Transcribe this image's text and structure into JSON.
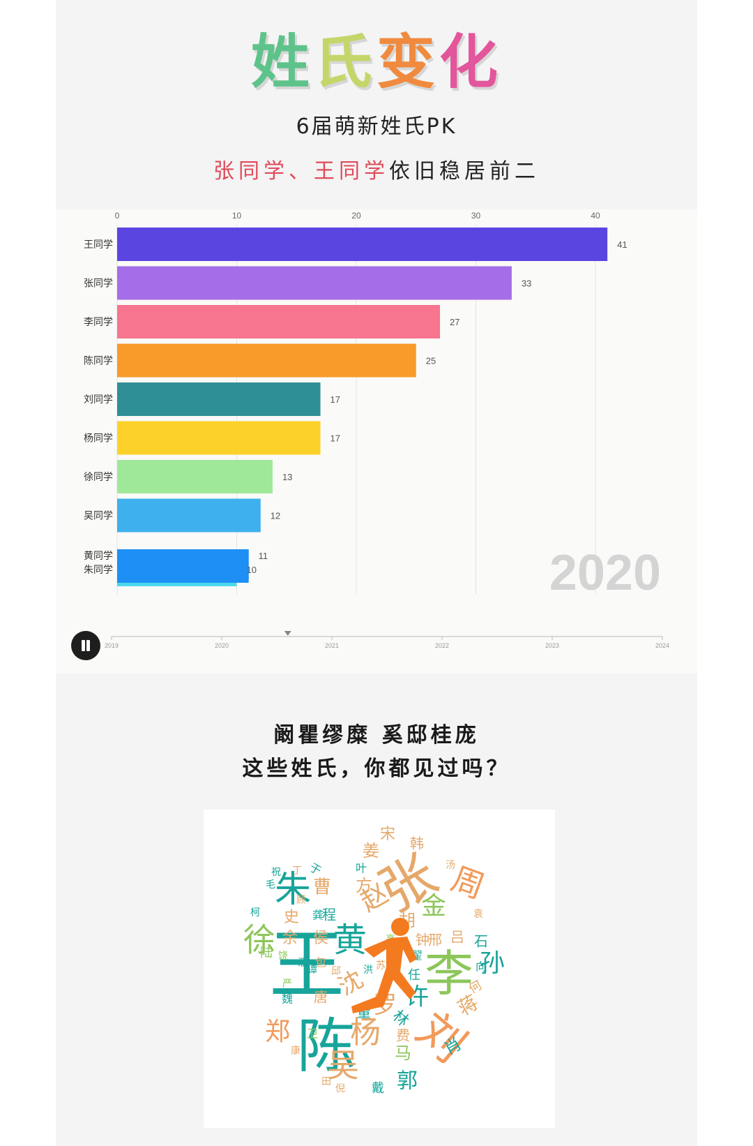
{
  "header": {
    "title_chars": [
      {
        "char": "姓",
        "color": "#5ec38a"
      },
      {
        "char": "氏",
        "color": "#c4d66a"
      },
      {
        "char": "变",
        "color": "#f08a3e"
      },
      {
        "char": "化",
        "color": "#e3569b"
      }
    ],
    "subtitle": "6届萌新姓氏PK",
    "headline_highlight": "张同学、王同学",
    "headline_rest": "依旧稳居前二"
  },
  "chart_data": {
    "type": "bar",
    "orientation": "horizontal",
    "year_label": "2020",
    "xlim": [
      0,
      40
    ],
    "x_ticks": [
      "0",
      "10",
      "20",
      "30",
      "40"
    ],
    "categories": [
      "王同学",
      "张同学",
      "李同学",
      "陈同学",
      "刘同学",
      "杨同学",
      "徐同学",
      "吴同学",
      "黄同学",
      "朱同学"
    ],
    "values": [
      41,
      33,
      27,
      25,
      17,
      17,
      13,
      12,
      11,
      10
    ],
    "value_labels": [
      "41",
      "33",
      "27",
      "25",
      "17",
      "17",
      "13",
      "12",
      "11",
      "10"
    ],
    "colors": [
      "#5b45e0",
      "#a56ee8",
      "#f7758f",
      "#f89b2a",
      "#2f8f96",
      "#fcd12a",
      "#9fe89a",
      "#3fb0ee",
      "#1e8ff5",
      "#4cd9ec"
    ],
    "grid": true,
    "timeline": {
      "labels": [
        "2019",
        "2020",
        "2021",
        "2022",
        "2023",
        "2024"
      ],
      "progress": 0.32
    }
  },
  "controls": {
    "pause_icon": "pause-icon"
  },
  "lower": {
    "line1": "阚瞿缪糜  奚邸桂庞",
    "line2": "这些姓氏，你都见过吗？"
  },
  "word_cloud": {
    "runner_icon": "runner-silhouette-icon",
    "words": [
      {
        "text": "王",
        "color": "#17a49a"
      },
      {
        "text": "张",
        "color": "#e5a86a"
      },
      {
        "text": "陈",
        "color": "#17a49a"
      },
      {
        "text": "李",
        "color": "#8cc65a"
      },
      {
        "text": "刘",
        "color": "#f19a5a"
      },
      {
        "text": "黄",
        "color": "#17a49a"
      },
      {
        "text": "朱",
        "color": "#17a49a"
      },
      {
        "text": "徐",
        "color": "#8cc65a"
      },
      {
        "text": "杨",
        "color": "#e5a86a"
      },
      {
        "text": "吴",
        "color": "#e5a86a"
      },
      {
        "text": "周",
        "color": "#f19a5a"
      },
      {
        "text": "孙",
        "color": "#17a49a"
      },
      {
        "text": "郑",
        "color": "#f19a5a"
      },
      {
        "text": "赵",
        "color": "#e5a86a"
      },
      {
        "text": "许",
        "color": "#17a49a"
      },
      {
        "text": "沈",
        "color": "#e5a86a"
      },
      {
        "text": "罗",
        "color": "#e5a86a"
      },
      {
        "text": "胡",
        "color": "#e5a86a"
      },
      {
        "text": "金",
        "color": "#8cc65a"
      },
      {
        "text": "郭",
        "color": "#17a49a"
      },
      {
        "text": "马",
        "color": "#8cc65a"
      },
      {
        "text": "蒋",
        "color": "#e5a86a"
      },
      {
        "text": "曹",
        "color": "#e5a86a"
      },
      {
        "text": "方",
        "color": "#e5a86a"
      },
      {
        "text": "姜",
        "color": "#e5a86a"
      },
      {
        "text": "史",
        "color": "#e5a86a"
      },
      {
        "text": "余",
        "color": "#e5a86a"
      },
      {
        "text": "侯",
        "color": "#e5a86a"
      },
      {
        "text": "钟",
        "color": "#e5a86a"
      },
      {
        "text": "邢",
        "color": "#e5a86a"
      },
      {
        "text": "吕",
        "color": "#e5a86a"
      },
      {
        "text": "石",
        "color": "#17a49a"
      },
      {
        "text": "林",
        "color": "#17a49a"
      },
      {
        "text": "肖",
        "color": "#17a49a"
      },
      {
        "text": "费",
        "color": "#e5a86a"
      },
      {
        "text": "唐",
        "color": "#e5a86a"
      },
      {
        "text": "任",
        "color": "#17a49a"
      },
      {
        "text": "韩",
        "color": "#e5a86a"
      },
      {
        "text": "宋",
        "color": "#e5a86a"
      },
      {
        "text": "何",
        "color": "#e5a86a"
      },
      {
        "text": "叶",
        "color": "#17a49a"
      },
      {
        "text": "程",
        "color": "#17a49a"
      },
      {
        "text": "龚",
        "color": "#17a49a"
      },
      {
        "text": "陆",
        "color": "#8cc65a"
      },
      {
        "text": "毛",
        "color": "#17a49a"
      },
      {
        "text": "于",
        "color": "#17a49a"
      },
      {
        "text": "潘",
        "color": "#17a49a"
      },
      {
        "text": "包",
        "color": "#e5a86a"
      },
      {
        "text": "丁",
        "color": "#e5a86a"
      },
      {
        "text": "董",
        "color": "#17a49a"
      },
      {
        "text": "卫",
        "color": "#8cc65a"
      },
      {
        "text": "戴",
        "color": "#17a49a"
      },
      {
        "text": "康",
        "color": "#e5a86a"
      },
      {
        "text": "向",
        "color": "#17a49a"
      },
      {
        "text": "饶",
        "color": "#8cc65a"
      },
      {
        "text": "顾",
        "color": "#e5a86a"
      },
      {
        "text": "柯",
        "color": "#17a49a"
      },
      {
        "text": "倪",
        "color": "#e5a86a"
      },
      {
        "text": "翟",
        "color": "#17a49a"
      },
      {
        "text": "邱",
        "color": "#e5a86a"
      },
      {
        "text": "田",
        "color": "#e5a86a"
      },
      {
        "text": "谭",
        "color": "#17a49a"
      },
      {
        "text": "魏",
        "color": "#17a49a"
      },
      {
        "text": "高",
        "color": "#8cc65a"
      },
      {
        "text": "严",
        "color": "#8cc65a"
      },
      {
        "text": "洪",
        "color": "#17a49a"
      },
      {
        "text": "苏",
        "color": "#e5a86a"
      },
      {
        "text": "汤",
        "color": "#e5a86a"
      },
      {
        "text": "袁",
        "color": "#e5a86a"
      },
      {
        "text": "祝",
        "color": "#17a49a"
      }
    ]
  }
}
